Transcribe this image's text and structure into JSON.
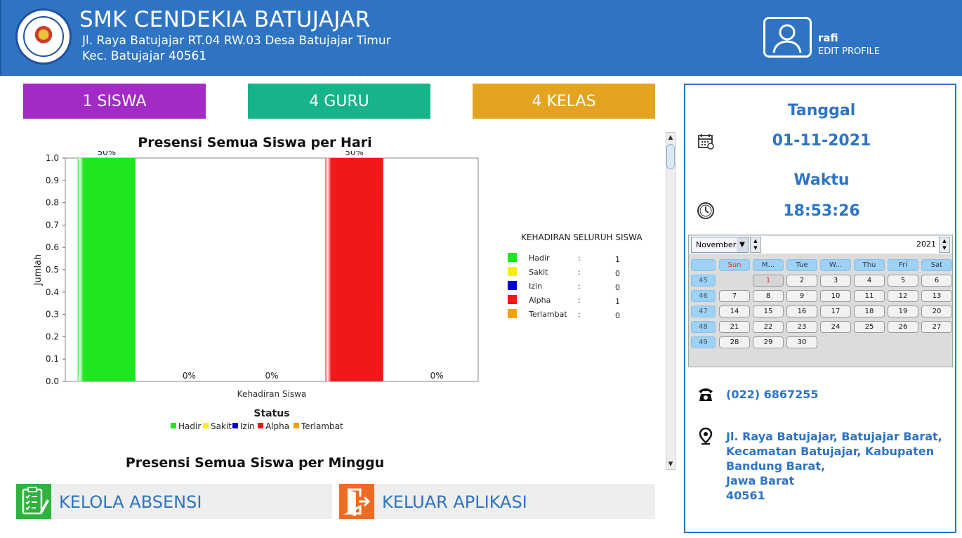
{
  "header": {
    "school_name": "SMK CENDEKIA BATUJAJAR",
    "address_line1": "Jl. Raya Batujajar RT.04 RW.03 Desa Batujajar Timur",
    "address_line2": "Kec. Batujajar 40561",
    "user_name": "rafi",
    "edit_profile": "EDIT PROFILE",
    "logo_text": "YAYASAN PUTRA CENDEKIA"
  },
  "stats": {
    "siswa": "1 SISWA",
    "guru": "4 GURU",
    "kelas": "4 KELAS"
  },
  "colors": {
    "header": "#2e74c2",
    "siswa": "#a12bc4",
    "guru": "#17b38b",
    "kelas": "#e3a420"
  },
  "chart_data": {
    "type": "bar",
    "title": "Presensi Semua Siswa per Hari",
    "xlabel": "Status",
    "ylabel": "Jumlah",
    "category_label": "Kehadiran Siswa",
    "ylim": [
      0,
      1
    ],
    "yticks": [
      "0.0",
      "0.1",
      "0.2",
      "0.3",
      "0.4",
      "0.5",
      "0.6",
      "0.7",
      "0.8",
      "0.9",
      "1.0"
    ],
    "grid": false,
    "legend_position": "bottom",
    "series": [
      {
        "name": "Hadir",
        "value": 1,
        "label": "50%",
        "color": "#1fe61f"
      },
      {
        "name": "Sakit",
        "value": 0,
        "label": "0%",
        "color": "#f5f000"
      },
      {
        "name": "Izin",
        "value": 0,
        "label": "0%",
        "color": "#0000cc"
      },
      {
        "name": "Alpha",
        "value": 1,
        "label": "50%",
        "color": "#f01818"
      },
      {
        "name": "Terlambat",
        "value": 0,
        "label": "0%",
        "color": "#f5a000"
      }
    ],
    "side_legend": {
      "title": "KEHADIRAN SELURUH SISWA",
      "items": [
        {
          "name": "Hadir",
          "sep": ":",
          "count": "1"
        },
        {
          "name": "Sakit",
          "sep": ":",
          "count": "0"
        },
        {
          "name": "Izin",
          "sep": ":",
          "count": "0"
        },
        {
          "name": "Alpha",
          "sep": ":",
          "count": "1"
        },
        {
          "name": "Terlambat",
          "sep": ":",
          "count": "0"
        }
      ]
    }
  },
  "weekly_title": "Presensi Semua Siswa per Minggu",
  "actions": {
    "kelola": "KELOLA ABSENSI",
    "keluar": "KELUAR APLIKASI"
  },
  "side": {
    "tanggal_label": "Tanggal",
    "tanggal_value": "01-11-2021",
    "waktu_label": "Waktu",
    "waktu_value": "18:53:26",
    "phone": "(022) 6867255",
    "address": [
      "Jl. Raya Batujajar, Batujajar Barat,",
      "Kecamatan Batujajar, Kabupaten",
      "Bandung Barat,",
      "Jawa Barat",
      "40561"
    ]
  },
  "calendar": {
    "month": "November",
    "year": "2021",
    "day_headers": [
      "Sun",
      "M...",
      "Tue",
      "W...",
      "Thu",
      "Fri",
      "Sat"
    ],
    "weeks": [
      {
        "week": "45",
        "days": [
          "",
          "1",
          "2",
          "3",
          "4",
          "5",
          "6"
        ]
      },
      {
        "week": "46",
        "days": [
          "7",
          "8",
          "9",
          "10",
          "11",
          "12",
          "13"
        ]
      },
      {
        "week": "47",
        "days": [
          "14",
          "15",
          "16",
          "17",
          "18",
          "19",
          "20"
        ]
      },
      {
        "week": "48",
        "days": [
          "21",
          "22",
          "23",
          "24",
          "25",
          "26",
          "27"
        ]
      },
      {
        "week": "49",
        "days": [
          "28",
          "29",
          "30",
          "",
          "",
          "",
          ""
        ]
      }
    ],
    "selected_day": "1"
  }
}
